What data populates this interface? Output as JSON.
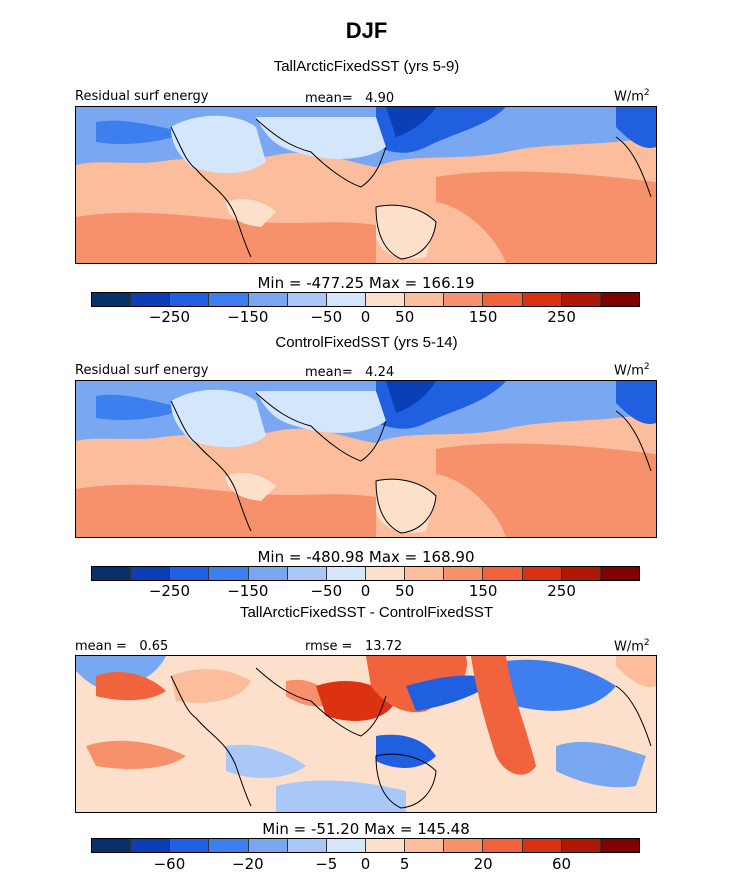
{
  "main_title": "DJF",
  "palette": {
    "abs": [
      "#08306b",
      "#0a3fb5",
      "#1f5fe0",
      "#3d7fee",
      "#7aa7f2",
      "#aac8f7",
      "#d3e6fb",
      "#fde0cc",
      "#fbbd9c",
      "#f7916b",
      "#f0633d",
      "#db3212",
      "#b01806",
      "#7f0000"
    ],
    "diff": [
      "#08306b",
      "#0a3fb5",
      "#1f5fe0",
      "#3d7fee",
      "#7aa7f2",
      "#aac8f7",
      "#d3e6fb",
      "#fde0cc",
      "#fbbd9c",
      "#f7916b",
      "#f0633d",
      "#db3212",
      "#b01806",
      "#7f0000"
    ]
  },
  "chart_data": [
    {
      "type": "heatmap",
      "title": "TallArcticFixedSST (yrs 5-9)",
      "left_label": "Residual surf energy",
      "mean_label": "mean=",
      "mean_value": "4.90",
      "unit_base": "W/m",
      "unit_exp": "2",
      "min_label": "Min",
      "min": "-477.25",
      "max_label": "Max",
      "max": "166.19",
      "colorbar_ticks": [
        "−250",
        "−150",
        "−50",
        "0",
        "50",
        "150",
        "250"
      ]
    },
    {
      "type": "heatmap",
      "title": "ControlFixedSST (yrs 5-14)",
      "left_label": "Residual surf energy",
      "mean_label": "mean=",
      "mean_value": "4.24",
      "unit_base": "W/m",
      "unit_exp": "2",
      "min_label": "Min",
      "min": "-480.98",
      "max_label": "Max",
      "max": "168.90",
      "colorbar_ticks": [
        "−250",
        "−150",
        "−50",
        "0",
        "50",
        "150",
        "250"
      ]
    },
    {
      "type": "heatmap",
      "title": "TallArcticFixedSST - ControlFixedSST",
      "left_label": "mean =",
      "mean_label": "",
      "mean_value": "0.65",
      "rmse_label": "rmse =",
      "rmse_value": "13.72",
      "unit_base": "W/m",
      "unit_exp": "2",
      "min_label": "Min",
      "min": "-51.20",
      "max_label": "Max",
      "max": "145.48",
      "colorbar_ticks": [
        "−60",
        "−20",
        "−5",
        "0",
        "5",
        "20",
        "60"
      ]
    }
  ]
}
